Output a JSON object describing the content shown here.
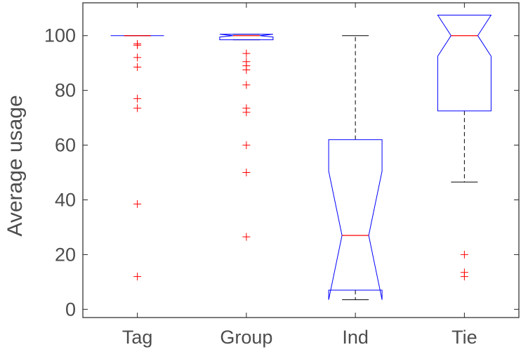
{
  "chart_data": {
    "type": "boxplot",
    "ylabel": "Average usage",
    "ylim": [
      -3,
      112
    ],
    "yticks": [
      0,
      20,
      40,
      60,
      80,
      100
    ],
    "notched": true,
    "colors": {
      "box": "#0000ff",
      "median": "#ff0000",
      "whisker": "#000000",
      "outlier": "#ff0000",
      "axis": "#262626"
    },
    "categories": [
      "Tag",
      "Group",
      "Ind",
      "Tie"
    ],
    "boxes": [
      {
        "name": "Tag",
        "whisker_low": 100,
        "q1": 100,
        "median": 100,
        "q3": 100,
        "whisker_high": 100,
        "notch_low": 100,
        "notch_high": 100,
        "outliers": [
          97,
          96.5,
          92,
          88.5,
          77,
          73.5,
          38.5,
          12
        ]
      },
      {
        "name": "Group",
        "whisker_low": 98.5,
        "q1": 98.5,
        "median": 100,
        "q3": 100.5,
        "whisker_high": 100.5,
        "notch_low": 99.5,
        "notch_high": 100.5,
        "outliers": [
          93.5,
          90.5,
          89,
          87.5,
          82,
          73.5,
          72,
          60,
          50,
          26.5
        ]
      },
      {
        "name": "Ind",
        "whisker_low": 3.5,
        "q1": 7,
        "median": 27,
        "q3": 62,
        "whisker_high": 100,
        "notch_low": 3.5,
        "notch_high": 50.5,
        "outliers": []
      },
      {
        "name": "Tie",
        "whisker_low": 46.5,
        "q1": 72.5,
        "median": 100,
        "q3": 107.5,
        "whisker_high": 107.5,
        "notch_low": 92.5,
        "notch_high": 107.5,
        "outliers": [
          20,
          13.5,
          12
        ]
      }
    ]
  }
}
